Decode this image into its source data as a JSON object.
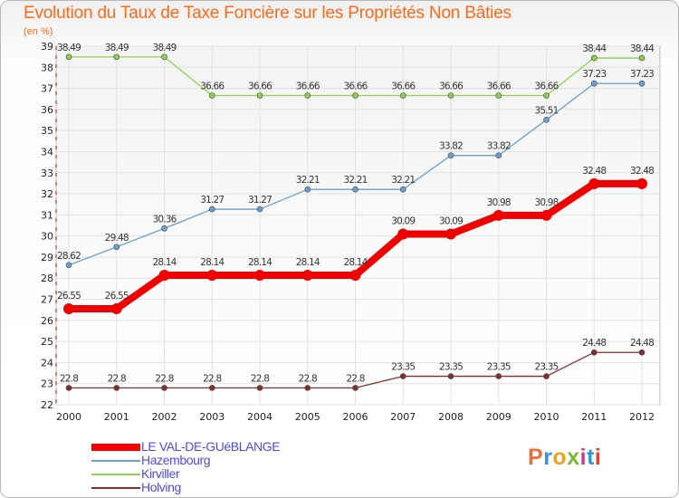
{
  "title": "Evolution du Taux de Taxe Foncière sur les Propriétés Non Bâties",
  "unit": "(en %)",
  "logo": {
    "text": "Proxiti",
    "colors": [
      "#e8703a",
      "#3c8fd8",
      "#f0a020",
      "#7ab82c",
      "#d04080",
      "#2c9ad0",
      "#e84020"
    ]
  },
  "chart_data": {
    "type": "line",
    "title": "Evolution du Taux de Taxe Foncière sur les Propriétés Non Bâties",
    "ylabel": "(en %)",
    "xlabel": "",
    "ylim": [
      22,
      39
    ],
    "yticks": [
      "22",
      "23",
      "24",
      "25",
      "26",
      "27",
      "28",
      "29",
      "30",
      "31",
      "32",
      "33",
      "34",
      "35",
      "36",
      "37",
      "38",
      "39"
    ],
    "categories": [
      "2000",
      "2001",
      "2002",
      "2003",
      "2004",
      "2005",
      "2006",
      "2007",
      "2008",
      "2009",
      "2010",
      "2011",
      "2012"
    ],
    "series": [
      {
        "name": "LE VAL-DE-GUéBLANGE",
        "color": "#ee0000",
        "values": [
          26.55,
          26.55,
          28.14,
          28.14,
          28.14,
          28.14,
          28.14,
          30.09,
          30.09,
          30.98,
          30.98,
          32.48,
          32.48
        ],
        "labels": [
          "26.55",
          "26.55",
          "28.14",
          "28.14",
          "28.14",
          "28.14",
          "28.14",
          "30.09",
          "30.09",
          "30.98",
          "30.98",
          "32.48",
          "32.48"
        ]
      },
      {
        "name": "Hazembourg",
        "color": "#6a9fd0",
        "values": [
          28.62,
          29.48,
          30.36,
          31.27,
          31.27,
          32.21,
          32.21,
          32.21,
          33.82,
          33.82,
          35.51,
          37.23,
          37.23
        ],
        "labels": [
          "28.62",
          "29.48",
          "30.36",
          "31.27",
          "31.27",
          "32.21",
          "32.21",
          "32.21",
          "33.82",
          "33.82",
          "35.51",
          "37.23",
          "37.23"
        ]
      },
      {
        "name": "Kirviller",
        "color": "#90d050",
        "values": [
          38.49,
          38.49,
          38.49,
          36.66,
          36.66,
          36.66,
          36.66,
          36.66,
          36.66,
          36.66,
          36.66,
          38.44,
          38.44
        ],
        "labels": [
          "38.49",
          "38.49",
          "38.49",
          "36.66",
          "36.66",
          "36.66",
          "36.66",
          "36.66",
          "36.66",
          "36.66",
          "36.66",
          "38.44",
          "38.44"
        ]
      },
      {
        "name": "Holving",
        "color": "#803030",
        "values": [
          22.8,
          22.8,
          22.8,
          22.8,
          22.8,
          22.8,
          22.8,
          23.35,
          23.35,
          23.35,
          23.35,
          24.48,
          24.48
        ],
        "labels": [
          "22.8",
          "22.8",
          "22.8",
          "22.8",
          "22.8",
          "22.8",
          "22.8",
          "23.35",
          "23.35",
          "23.35",
          "23.35",
          "24.48",
          "24.48"
        ]
      }
    ]
  }
}
